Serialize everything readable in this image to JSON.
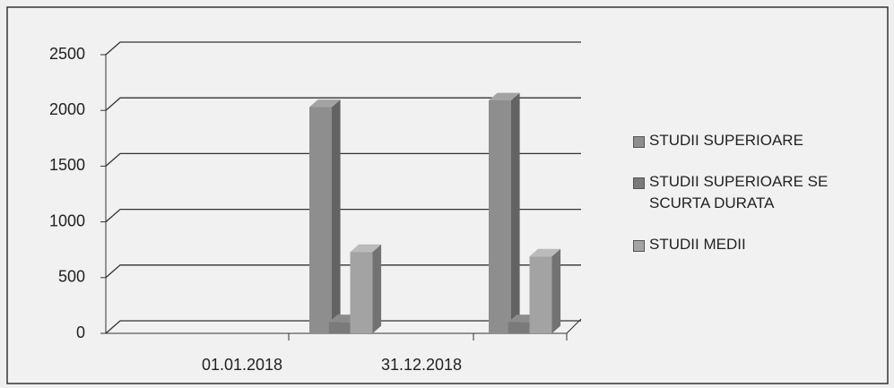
{
  "chart_data": {
    "type": "bar",
    "categories": [
      "01.01.2018",
      "31.12.2018"
    ],
    "series": [
      {
        "name": "STUDII SUPERIOARE",
        "color": "#8e8e8e",
        "values": [
          2030,
          2090
        ]
      },
      {
        "name": "STUDII SUPERIOARE SE SCURTA DURATA",
        "color": "#7a7a7a",
        "values": [
          100,
          100
        ]
      },
      {
        "name": "STUDII MEDII",
        "color": "#a3a3a3",
        "values": [
          730,
          690
        ]
      }
    ],
    "ylim": [
      0,
      2500
    ],
    "yticks": [
      0,
      500,
      1000,
      1500,
      2000,
      2500
    ],
    "grid": true,
    "legend": "right"
  }
}
